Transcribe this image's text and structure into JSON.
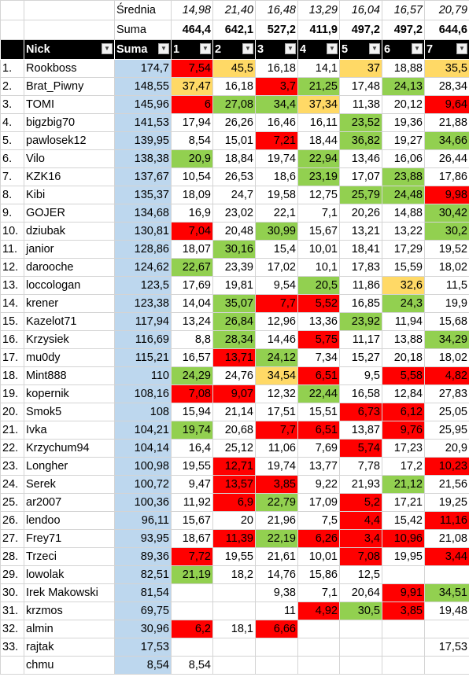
{
  "header_rows": {
    "srednia_label": "Średnia",
    "srednia_values": [
      "14,98",
      "21,40",
      "16,48",
      "13,29",
      "16,04",
      "16,57",
      "20,79"
    ],
    "suma_label": "Suma",
    "suma_values": [
      "464,4",
      "642,1",
      "527,2",
      "411,9",
      "497,2",
      "497,2",
      "644,6"
    ]
  },
  "columns": {
    "lp": "",
    "nick": "Nick",
    "suma": "Suma",
    "rounds": [
      "1",
      "2",
      "3",
      "4",
      "5",
      "6",
      "7"
    ]
  },
  "icons": {
    "filter": "filter-dropdown-icon",
    "sort": "sort-descending-filter-icon"
  },
  "colors": {
    "red": "#ff0000",
    "green": "#92d050",
    "yellow": "#ffd966",
    "suma_blue": "#bdd7ee",
    "header_black": "#000000"
  },
  "rows": [
    {
      "lp": "1.",
      "nick": "Rookboss",
      "suma": "174,7",
      "r": [
        "7,54",
        "45,5",
        "16,18",
        "14,1",
        "37",
        "18,88",
        "35,5"
      ],
      "c": [
        "red",
        "yellow",
        "",
        "",
        "yellow",
        "",
        "yellow"
      ]
    },
    {
      "lp": "2.",
      "nick": "Brat_Piwny",
      "suma": "148,55",
      "r": [
        "37,47",
        "16,18",
        "3,7",
        "21,25",
        "17,48",
        "24,13",
        "28,34"
      ],
      "c": [
        "yellow",
        "",
        "red",
        "green",
        "",
        "green",
        ""
      ]
    },
    {
      "lp": "3.",
      "nick": "TOMI",
      "suma": "145,96",
      "r": [
        "6",
        "27,08",
        "34,4",
        "37,34",
        "11,38",
        "20,12",
        "9,64"
      ],
      "c": [
        "red",
        "green",
        "green",
        "yellow",
        "",
        "",
        "red"
      ]
    },
    {
      "lp": "4.",
      "nick": "bigzbig70",
      "suma": "141,53",
      "r": [
        "17,94",
        "26,26",
        "16,46",
        "16,11",
        "23,52",
        "19,36",
        "21,88"
      ],
      "c": [
        "",
        "",
        "",
        "",
        "green",
        "",
        ""
      ]
    },
    {
      "lp": "5.",
      "nick": "pawlosek12",
      "suma": "139,95",
      "r": [
        "8,54",
        "15,01",
        "7,21",
        "18,44",
        "36,82",
        "19,27",
        "34,66"
      ],
      "c": [
        "",
        "",
        "red",
        "",
        "green",
        "",
        "green"
      ]
    },
    {
      "lp": "6.",
      "nick": "Vilo",
      "suma": "138,38",
      "r": [
        "20,9",
        "18,84",
        "19,74",
        "22,94",
        "13,46",
        "16,06",
        "26,44"
      ],
      "c": [
        "green",
        "",
        "",
        "green",
        "",
        "",
        ""
      ]
    },
    {
      "lp": "7.",
      "nick": "KZK16",
      "suma": "137,67",
      "r": [
        "10,54",
        "26,53",
        "18,6",
        "23,19",
        "17,07",
        "23,88",
        "17,86"
      ],
      "c": [
        "",
        "",
        "",
        "green",
        "",
        "green",
        ""
      ]
    },
    {
      "lp": "8.",
      "nick": "Kibi",
      "suma": "135,37",
      "r": [
        "18,09",
        "24,7",
        "19,58",
        "12,75",
        "25,79",
        "24,48",
        "9,98"
      ],
      "c": [
        "",
        "",
        "",
        "",
        "green",
        "green",
        "red"
      ]
    },
    {
      "lp": "9.",
      "nick": "GOJER",
      "suma": "134,68",
      "r": [
        "16,9",
        "23,02",
        "22,1",
        "7,1",
        "20,26",
        "14,88",
        "30,42"
      ],
      "c": [
        "",
        "",
        "",
        "",
        "",
        "",
        "green"
      ]
    },
    {
      "lp": "10.",
      "nick": "dziubak",
      "suma": "130,81",
      "r": [
        "7,04",
        "20,48",
        "30,99",
        "15,67",
        "13,21",
        "13,22",
        "30,2"
      ],
      "c": [
        "red",
        "",
        "green",
        "",
        "",
        "",
        "green"
      ]
    },
    {
      "lp": "11.",
      "nick": "janior",
      "suma": "128,86",
      "r": [
        "18,07",
        "30,16",
        "15,4",
        "10,01",
        "18,41",
        "17,29",
        "19,52"
      ],
      "c": [
        "",
        "green",
        "",
        "",
        "",
        "",
        ""
      ]
    },
    {
      "lp": "12.",
      "nick": "darooche",
      "suma": "124,62",
      "r": [
        "22,67",
        "23,39",
        "17,02",
        "10,1",
        "17,83",
        "15,59",
        "18,02"
      ],
      "c": [
        "green",
        "",
        "",
        "",
        "",
        "",
        ""
      ]
    },
    {
      "lp": "13.",
      "nick": "loccologan",
      "suma": "123,5",
      "r": [
        "17,69",
        "19,81",
        "9,54",
        "20,5",
        "11,86",
        "32,6",
        "11,5"
      ],
      "c": [
        "",
        "",
        "",
        "green",
        "",
        "yellow",
        ""
      ]
    },
    {
      "lp": "14.",
      "nick": "krener",
      "suma": "123,38",
      "r": [
        "14,04",
        "35,07",
        "7,7",
        "5,52",
        "16,85",
        "24,3",
        "19,9"
      ],
      "c": [
        "",
        "green",
        "red",
        "red",
        "",
        "green",
        ""
      ]
    },
    {
      "lp": "15.",
      "nick": "Kazelot71",
      "suma": "117,94",
      "r": [
        "13,24",
        "26,84",
        "12,96",
        "13,36",
        "23,92",
        "11,94",
        "15,68"
      ],
      "c": [
        "",
        "green",
        "",
        "",
        "green",
        "",
        ""
      ]
    },
    {
      "lp": "16.",
      "nick": "Krzysiek",
      "suma": "116,69",
      "r": [
        "8,8",
        "28,34",
        "14,46",
        "5,75",
        "11,17",
        "13,88",
        "34,29"
      ],
      "c": [
        "",
        "green",
        "",
        "red",
        "",
        "",
        "green"
      ]
    },
    {
      "lp": "17.",
      "nick": "mu0dy",
      "suma": "115,21",
      "r": [
        "16,57",
        "13,71",
        "24,12",
        "7,34",
        "15,27",
        "20,18",
        "18,02"
      ],
      "c": [
        "",
        "red",
        "green",
        "",
        "",
        "",
        ""
      ]
    },
    {
      "lp": "18.",
      "nick": "Mint888",
      "suma": "110",
      "r": [
        "24,29",
        "24,76",
        "34,54",
        "6,51",
        "9,5",
        "5,58",
        "4,82"
      ],
      "c": [
        "green",
        "",
        "yellow",
        "red",
        "",
        "red",
        "red"
      ]
    },
    {
      "lp": "19.",
      "nick": "kopernik",
      "suma": "108,16",
      "r": [
        "7,08",
        "9,07",
        "12,32",
        "22,44",
        "16,58",
        "12,84",
        "27,83"
      ],
      "c": [
        "red",
        "red",
        "",
        "green",
        "",
        "",
        ""
      ]
    },
    {
      "lp": "20.",
      "nick": "Smok5",
      "suma": "108",
      "r": [
        "15,94",
        "21,14",
        "17,51",
        "15,51",
        "6,73",
        "6,12",
        "25,05"
      ],
      "c": [
        "",
        "",
        "",
        "",
        "red",
        "red",
        ""
      ]
    },
    {
      "lp": "21.",
      "nick": "Ivka",
      "suma": "104,21",
      "r": [
        "19,74",
        "20,68",
        "7,7",
        "6,51",
        "13,87",
        "9,76",
        "25,95"
      ],
      "c": [
        "green",
        "",
        "red",
        "red",
        "",
        "red",
        ""
      ]
    },
    {
      "lp": "22.",
      "nick": "Krzychum94",
      "suma": "104,14",
      "r": [
        "16,4",
        "25,12",
        "11,06",
        "7,69",
        "5,74",
        "17,23",
        "20,9"
      ],
      "c": [
        "",
        "",
        "",
        "",
        "red",
        "",
        ""
      ]
    },
    {
      "lp": "23.",
      "nick": "Longher",
      "suma": "100,98",
      "r": [
        "19,55",
        "12,71",
        "19,74",
        "13,77",
        "7,78",
        "17,2",
        "10,23"
      ],
      "c": [
        "",
        "red",
        "",
        "",
        "",
        "",
        "red"
      ]
    },
    {
      "lp": "24.",
      "nick": "Serek",
      "suma": "100,72",
      "r": [
        "9,47",
        "13,57",
        "3,85",
        "9,22",
        "21,93",
        "21,12",
        "21,56"
      ],
      "c": [
        "",
        "red",
        "red",
        "",
        "",
        "green",
        ""
      ]
    },
    {
      "lp": "25.",
      "nick": "ar2007",
      "suma": "100,36",
      "r": [
        "11,92",
        "6,9",
        "22,79",
        "17,09",
        "5,2",
        "17,21",
        "19,25"
      ],
      "c": [
        "",
        "red",
        "green",
        "",
        "red",
        "",
        ""
      ]
    },
    {
      "lp": "26.",
      "nick": "lendoo",
      "suma": "96,11",
      "r": [
        "15,67",
        "20",
        "21,96",
        "7,5",
        "4,4",
        "15,42",
        "11,16"
      ],
      "c": [
        "",
        "",
        "",
        "",
        "red",
        "",
        "red"
      ]
    },
    {
      "lp": "27.",
      "nick": "Frey71",
      "suma": "93,95",
      "r": [
        "18,67",
        "11,39",
        "22,19",
        "6,26",
        "3,4",
        "10,96",
        "21,08"
      ],
      "c": [
        "",
        "red",
        "green",
        "red",
        "red",
        "red",
        ""
      ]
    },
    {
      "lp": "28.",
      "nick": "Trzeci",
      "suma": "89,36",
      "r": [
        "7,72",
        "19,55",
        "21,61",
        "10,01",
        "7,08",
        "19,95",
        "3,44"
      ],
      "c": [
        "red",
        "",
        "",
        "",
        "red",
        "",
        "red"
      ]
    },
    {
      "lp": "29.",
      "nick": "lowolak",
      "suma": "82,51",
      "r": [
        "21,19",
        "18,2",
        "14,76",
        "15,86",
        "12,5",
        "",
        ""
      ],
      "c": [
        "green",
        "",
        "",
        "",
        "",
        "",
        ""
      ]
    },
    {
      "lp": "30.",
      "nick": "Irek Makowski",
      "suma": "81,54",
      "r": [
        "",
        "",
        "9,38",
        "7,1",
        "20,64",
        "9,91",
        "34,51"
      ],
      "c": [
        "",
        "",
        "",
        "",
        "",
        "red",
        "green"
      ]
    },
    {
      "lp": "31.",
      "nick": "krzmos",
      "suma": "69,75",
      "r": [
        "",
        "",
        "11",
        "4,92",
        "30,5",
        "3,85",
        "19,48"
      ],
      "c": [
        "",
        "",
        "",
        "red",
        "green",
        "red",
        ""
      ]
    },
    {
      "lp": "32.",
      "nick": "almin",
      "suma": "30,96",
      "r": [
        "6,2",
        "18,1",
        "6,66",
        "",
        "",
        "",
        ""
      ],
      "c": [
        "red",
        "",
        "red",
        "",
        "",
        "",
        ""
      ]
    },
    {
      "lp": "33.",
      "nick": "rajtak",
      "suma": "17,53",
      "r": [
        "",
        "",
        "",
        "",
        "",
        "",
        "17,53"
      ],
      "c": [
        "",
        "",
        "",
        "",
        "",
        "",
        ""
      ]
    },
    {
      "lp": "",
      "nick": "chmu",
      "suma": "8,54",
      "r": [
        "8,54",
        "",
        "",
        "",
        "",
        "",
        ""
      ],
      "c": [
        "",
        "",
        "",
        "",
        "",
        "",
        ""
      ]
    }
  ]
}
